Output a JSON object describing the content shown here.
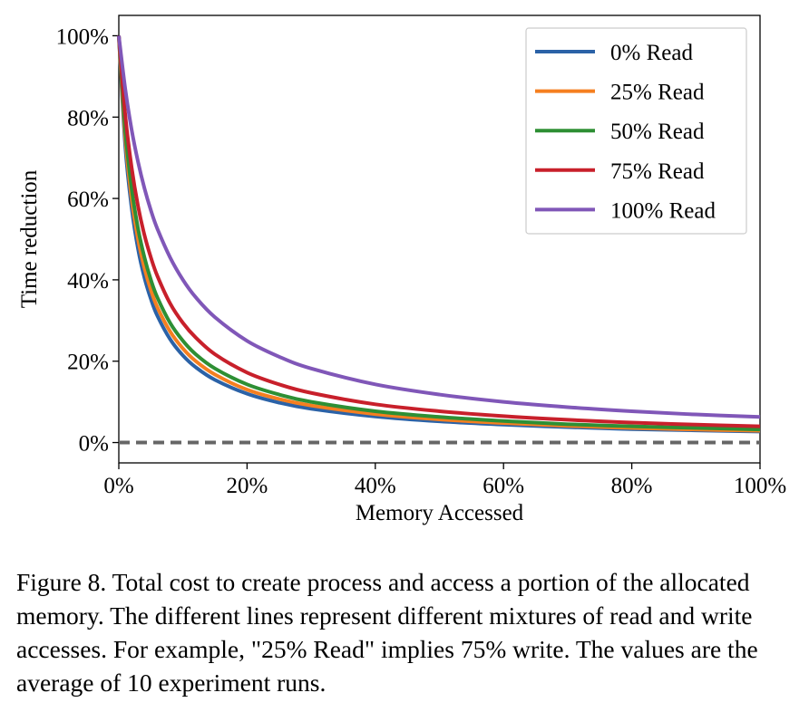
{
  "chart_data": {
    "type": "line",
    "xlabel": "Memory Accessed",
    "ylabel": "Time reduction",
    "xlim": [
      0,
      100
    ],
    "ylim": [
      -5,
      105
    ],
    "x_unit": "%",
    "y_unit": "%",
    "x_ticks": [
      "0%",
      "20%",
      "40%",
      "60%",
      "80%",
      "100%"
    ],
    "y_ticks": [
      "0%",
      "20%",
      "40%",
      "60%",
      "80%",
      "100%"
    ],
    "legend_position": "top-right",
    "grid": false,
    "x": [
      0,
      1,
      2,
      3,
      4,
      5,
      6,
      8,
      10,
      12,
      15,
      20,
      25,
      30,
      40,
      50,
      60,
      70,
      80,
      90,
      100
    ],
    "series": [
      {
        "name": "0% Read",
        "color": "#2b62a7",
        "values": [
          100,
          73,
          57.7,
          47.6,
          40.5,
          35.3,
          31.2,
          25.4,
          21.4,
          18.5,
          15.4,
          12.0,
          9.8,
          8.3,
          6.4,
          5.2,
          4.4,
          3.8,
          3.3,
          3.0,
          2.7
        ]
      },
      {
        "name": "25% Read",
        "color": "#f57f20",
        "values": [
          100,
          75,
          60,
          50,
          42.9,
          37.5,
          33.3,
          27.3,
          23.1,
          20,
          16.7,
          13.0,
          10.7,
          9.1,
          7.0,
          5.7,
          4.8,
          4.1,
          3.6,
          3.2,
          2.9
        ]
      },
      {
        "name": "50% Read",
        "color": "#2e8f34",
        "values": [
          100,
          76.9,
          62.5,
          52.6,
          45.5,
          40,
          35.7,
          29.4,
          25,
          21.7,
          18.2,
          14.3,
          11.8,
          10,
          7.7,
          6.3,
          5.3,
          4.5,
          4.0,
          3.6,
          3.2
        ]
      },
      {
        "name": "75% Read",
        "color": "#c8202b",
        "values": [
          100,
          80.6,
          67.6,
          58.1,
          51.0,
          45.5,
          41.0,
          34.2,
          29.4,
          25.8,
          21.7,
          17.2,
          14.3,
          12.2,
          9.4,
          7.7,
          6.5,
          5.6,
          4.9,
          4.4,
          4.0
        ]
      },
      {
        "name": "100% Read",
        "color": "#8057b8",
        "values": [
          100,
          87,
          76.9,
          69,
          62.5,
          57.1,
          52.6,
          45.5,
          40,
          35.7,
          30.8,
          25,
          21.1,
          18.2,
          14.3,
          11.8,
          10,
          8.7,
          7.7,
          6.9,
          6.3
        ]
      }
    ],
    "reference_line": {
      "y": 0,
      "style": "dashed",
      "color": "#666666"
    }
  },
  "caption": "Figure 8. Total cost to create process and access a portion of the allocated memory. The different lines represent different mixtures of read and write accesses. For example, \"25% Read\" implies 75% write. The values are the average of 10 experiment runs."
}
